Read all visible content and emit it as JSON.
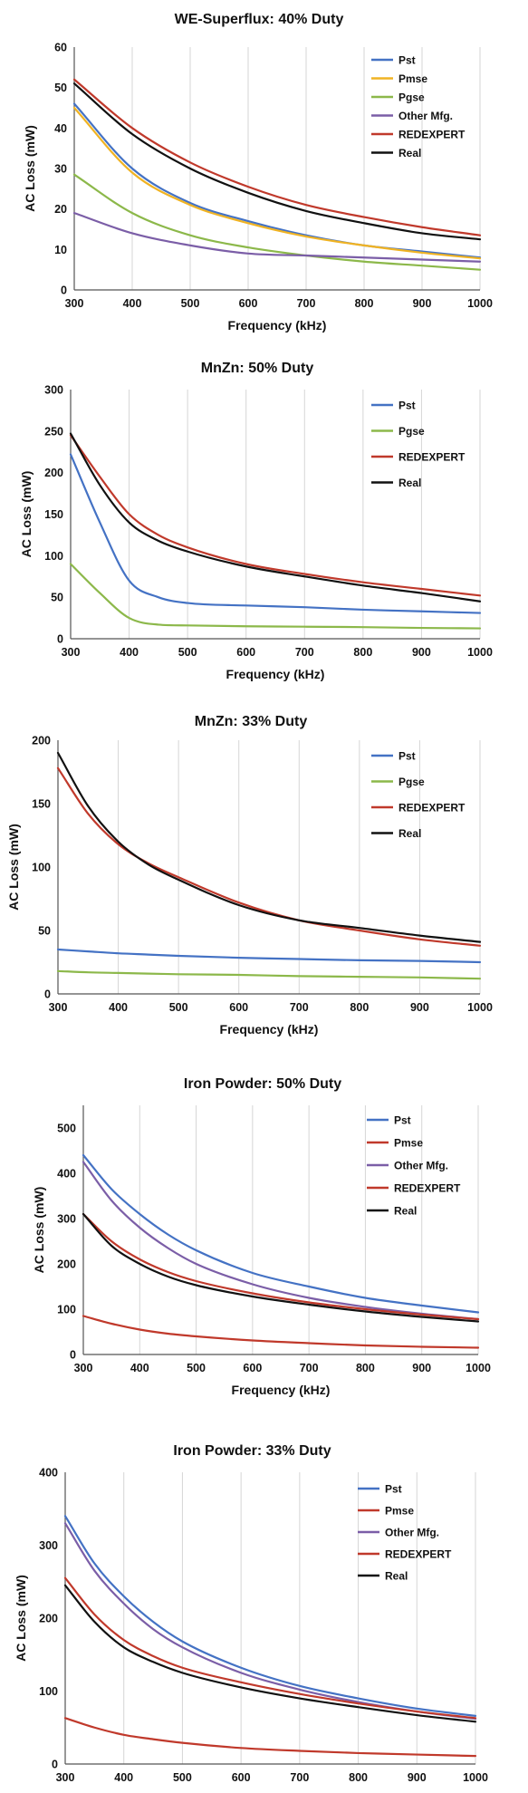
{
  "chart_data": [
    {
      "type": "line",
      "title": "WE-Superflux: 40% Duty",
      "xlabel": "Frequency (kHz)",
      "ylabel": "AC Loss (mW)",
      "xlim": [
        300,
        1000
      ],
      "ylim": [
        0,
        60
      ],
      "xticks": [
        300,
        400,
        500,
        600,
        700,
        800,
        900,
        1000
      ],
      "yticks": [
        0,
        10,
        20,
        30,
        40,
        50,
        60
      ],
      "grid": "vertical",
      "legend": "top-right",
      "x": [
        300,
        400,
        500,
        600,
        700,
        800,
        900,
        1000
      ],
      "series": [
        {
          "name": "Pst",
          "color": "#4472c4",
          "values": [
            46,
            30,
            21.5,
            17,
            13.5,
            11,
            9.5,
            8
          ]
        },
        {
          "name": "Pmse",
          "color": "#f0b323",
          "values": [
            45,
            29,
            21,
            16.5,
            13.2,
            11,
            9.2,
            7.8
          ]
        },
        {
          "name": "Pgse",
          "color": "#8cb84a",
          "values": [
            28.5,
            19,
            13.5,
            10.5,
            8.5,
            7,
            6,
            5
          ]
        },
        {
          "name": "Other Mfg.",
          "color": "#7b5ea7",
          "values": [
            19,
            14,
            11,
            9,
            8.5,
            8,
            7.5,
            7
          ]
        },
        {
          "name": "REDEXPERT",
          "color": "#c0392b",
          "values": [
            52,
            40,
            31.5,
            25.5,
            21,
            18,
            15.5,
            13.5
          ]
        },
        {
          "name": "Real",
          "color": "#111111",
          "values": [
            51,
            38.5,
            30,
            24,
            19.5,
            16.5,
            14,
            12.5
          ]
        }
      ]
    },
    {
      "type": "line",
      "title": "MnZn: 50% Duty",
      "xlabel": "Frequency (kHz)",
      "ylabel": "AC Loss (mW)",
      "xlim": [
        300,
        1000
      ],
      "ylim": [
        0,
        300
      ],
      "xticks": [
        300,
        400,
        500,
        600,
        700,
        800,
        900,
        1000
      ],
      "yticks": [
        0,
        50,
        100,
        150,
        200,
        250,
        300
      ],
      "grid": "vertical",
      "legend": "top-right",
      "x": [
        300,
        350,
        400,
        450,
        500,
        600,
        700,
        800,
        900,
        1000
      ],
      "series": [
        {
          "name": "Pst",
          "color": "#4472c4",
          "values": [
            222,
            140,
            70,
            50,
            43,
            40,
            38,
            35,
            33,
            31
          ]
        },
        {
          "name": "Pgse",
          "color": "#8cb84a",
          "values": [
            90,
            55,
            25,
            17,
            16,
            15,
            14.5,
            14,
            13,
            12.5
          ]
        },
        {
          "name": "REDEXPERT",
          "color": "#c0392b",
          "values": [
            245,
            195,
            150,
            125,
            110,
            90,
            78,
            68,
            60,
            52
          ]
        },
        {
          "name": "Real",
          "color": "#111111",
          "values": [
            247,
            185,
            140,
            118,
            105,
            87,
            75,
            64,
            55,
            45
          ]
        }
      ]
    },
    {
      "type": "line",
      "title": "MnZn: 33% Duty",
      "xlabel": "Frequency (kHz)",
      "ylabel": "AC Loss (mW)",
      "xlim": [
        300,
        1000
      ],
      "ylim": [
        0,
        200
      ],
      "xticks": [
        300,
        400,
        500,
        600,
        700,
        800,
        900,
        1000
      ],
      "yticks": [
        0,
        50,
        100,
        150,
        200
      ],
      "grid": "vertical",
      "legend": "top-right",
      "x": [
        300,
        350,
        400,
        450,
        500,
        600,
        700,
        800,
        900,
        1000
      ],
      "series": [
        {
          "name": "Pst",
          "color": "#4472c4",
          "values": [
            35,
            33.5,
            32,
            31,
            30,
            28.5,
            27.5,
            26.5,
            26,
            25
          ]
        },
        {
          "name": "Pgse",
          "color": "#8cb84a",
          "values": [
            18,
            17,
            16.5,
            16,
            15.5,
            15,
            14,
            13.5,
            13,
            12
          ]
        },
        {
          "name": "REDEXPERT",
          "color": "#c0392b",
          "values": [
            178,
            142,
            118,
            103,
            92,
            72,
            58,
            50,
            43,
            38
          ]
        },
        {
          "name": "Real",
          "color": "#111111",
          "values": [
            190,
            148,
            120,
            102,
            90,
            70,
            58,
            52,
            46,
            41
          ]
        }
      ]
    },
    {
      "type": "line",
      "title": "Iron Powder: 50% Duty",
      "xlabel": "Frequency (kHz)",
      "ylabel": "AC Loss (mW)",
      "xlim": [
        300,
        1000
      ],
      "ylim": [
        0,
        550
      ],
      "xticks": [
        300,
        400,
        500,
        600,
        700,
        800,
        900,
        1000
      ],
      "yticks": [
        0,
        100,
        200,
        300,
        400,
        500
      ],
      "grid": "vertical",
      "legend": "top-right",
      "x": [
        300,
        350,
        400,
        450,
        500,
        600,
        700,
        800,
        900,
        1000
      ],
      "series": [
        {
          "name": "Pst",
          "color": "#4472c4",
          "values": [
            440,
            365,
            310,
            265,
            230,
            180,
            150,
            125,
            108,
            93
          ]
        },
        {
          "name": "Pmse",
          "color": "#c0392b",
          "values": [
            85,
            68,
            55,
            46,
            40,
            31,
            25,
            20,
            17,
            15
          ]
        },
        {
          "name": "Other Mfg.",
          "color": "#7b5ea7",
          "values": [
            425,
            340,
            280,
            235,
            200,
            155,
            125,
            105,
            90,
            78
          ]
        },
        {
          "name": "REDEXPERT",
          "color": "#c0392b",
          "values": [
            310,
            250,
            210,
            182,
            162,
            135,
            115,
            100,
            88,
            78
          ]
        },
        {
          "name": "Real",
          "color": "#111111",
          "values": [
            310,
            240,
            200,
            172,
            153,
            128,
            110,
            95,
            83,
            73
          ]
        }
      ]
    },
    {
      "type": "line",
      "title": "Iron Powder: 33% Duty",
      "xlabel": "Frequency (kHz)",
      "ylabel": "AC Loss (mW)",
      "xlim": [
        300,
        1000
      ],
      "ylim": [
        0,
        400
      ],
      "xticks": [
        300,
        400,
        500,
        600,
        700,
        800,
        900,
        1000
      ],
      "yticks": [
        0,
        100,
        200,
        300,
        400
      ],
      "grid": "vertical",
      "legend": "top-right",
      "x": [
        300,
        350,
        400,
        450,
        500,
        600,
        700,
        800,
        900,
        1000
      ],
      "series": [
        {
          "name": "Pst",
          "color": "#4472c4",
          "values": [
            340,
            275,
            230,
            195,
            168,
            132,
            107,
            90,
            76,
            66
          ]
        },
        {
          "name": "Pmse",
          "color": "#c0392b",
          "values": [
            63,
            50,
            40,
            34,
            29,
            22,
            18,
            15,
            13,
            11
          ]
        },
        {
          "name": "Other Mfg.",
          "color": "#7b5ea7",
          "values": [
            330,
            265,
            220,
            185,
            160,
            125,
            102,
            85,
            72,
            62
          ]
        },
        {
          "name": "REDEXPERT",
          "color": "#c0392b",
          "values": [
            255,
            205,
            170,
            148,
            132,
            112,
            96,
            83,
            72,
            63
          ]
        },
        {
          "name": "Real",
          "color": "#111111",
          "values": [
            245,
            195,
            160,
            140,
            125,
            105,
            90,
            78,
            67,
            58
          ]
        }
      ]
    }
  ]
}
